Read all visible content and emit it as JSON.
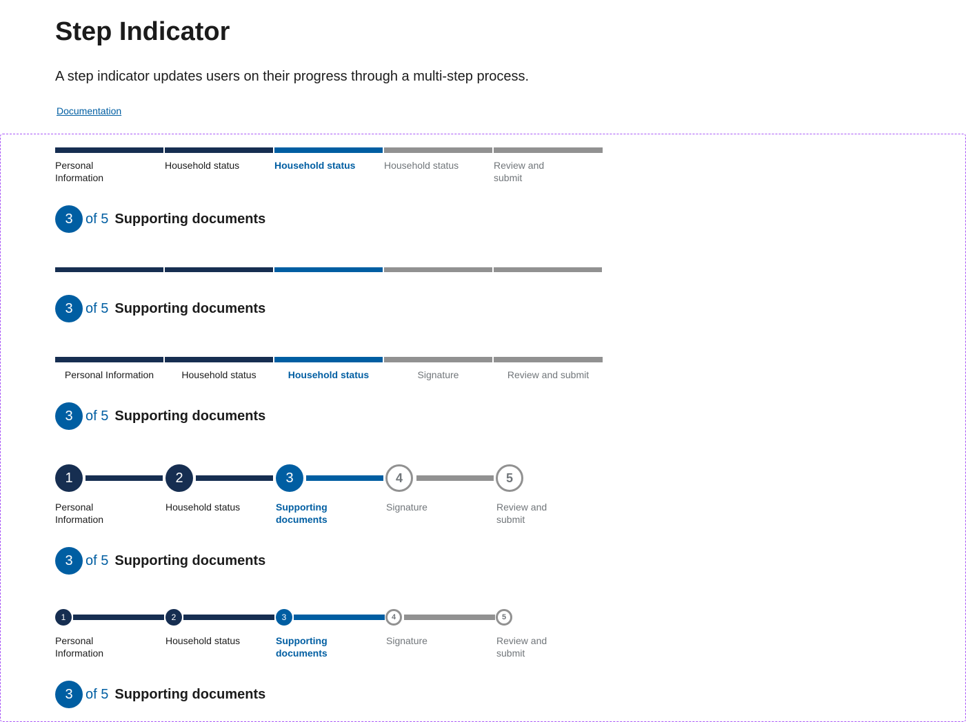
{
  "page": {
    "title": "Step Indicator",
    "description": "A step indicator updates users on their progress through a multi-step process.",
    "doc_link": "Documentation"
  },
  "heading": {
    "current": "3",
    "of_total": "of 5",
    "title": "Supporting documents"
  },
  "example1": {
    "labels": [
      "Personal Information",
      "Household status",
      "Household status",
      "Household status",
      "Review and submit"
    ]
  },
  "example3": {
    "labels": [
      "Personal Information",
      "Household status",
      "Household status",
      "Signature",
      "Review and submit"
    ]
  },
  "counters": {
    "numbers": [
      "1",
      "2",
      "3",
      "4",
      "5"
    ],
    "labels": [
      "Personal Information",
      "Household status",
      "Supporting documents",
      "Signature",
      "Review and submit"
    ]
  },
  "colors": {
    "complete": "#162e51",
    "current": "#005ea2",
    "pending": "#919191",
    "frame": "#a855f7"
  }
}
